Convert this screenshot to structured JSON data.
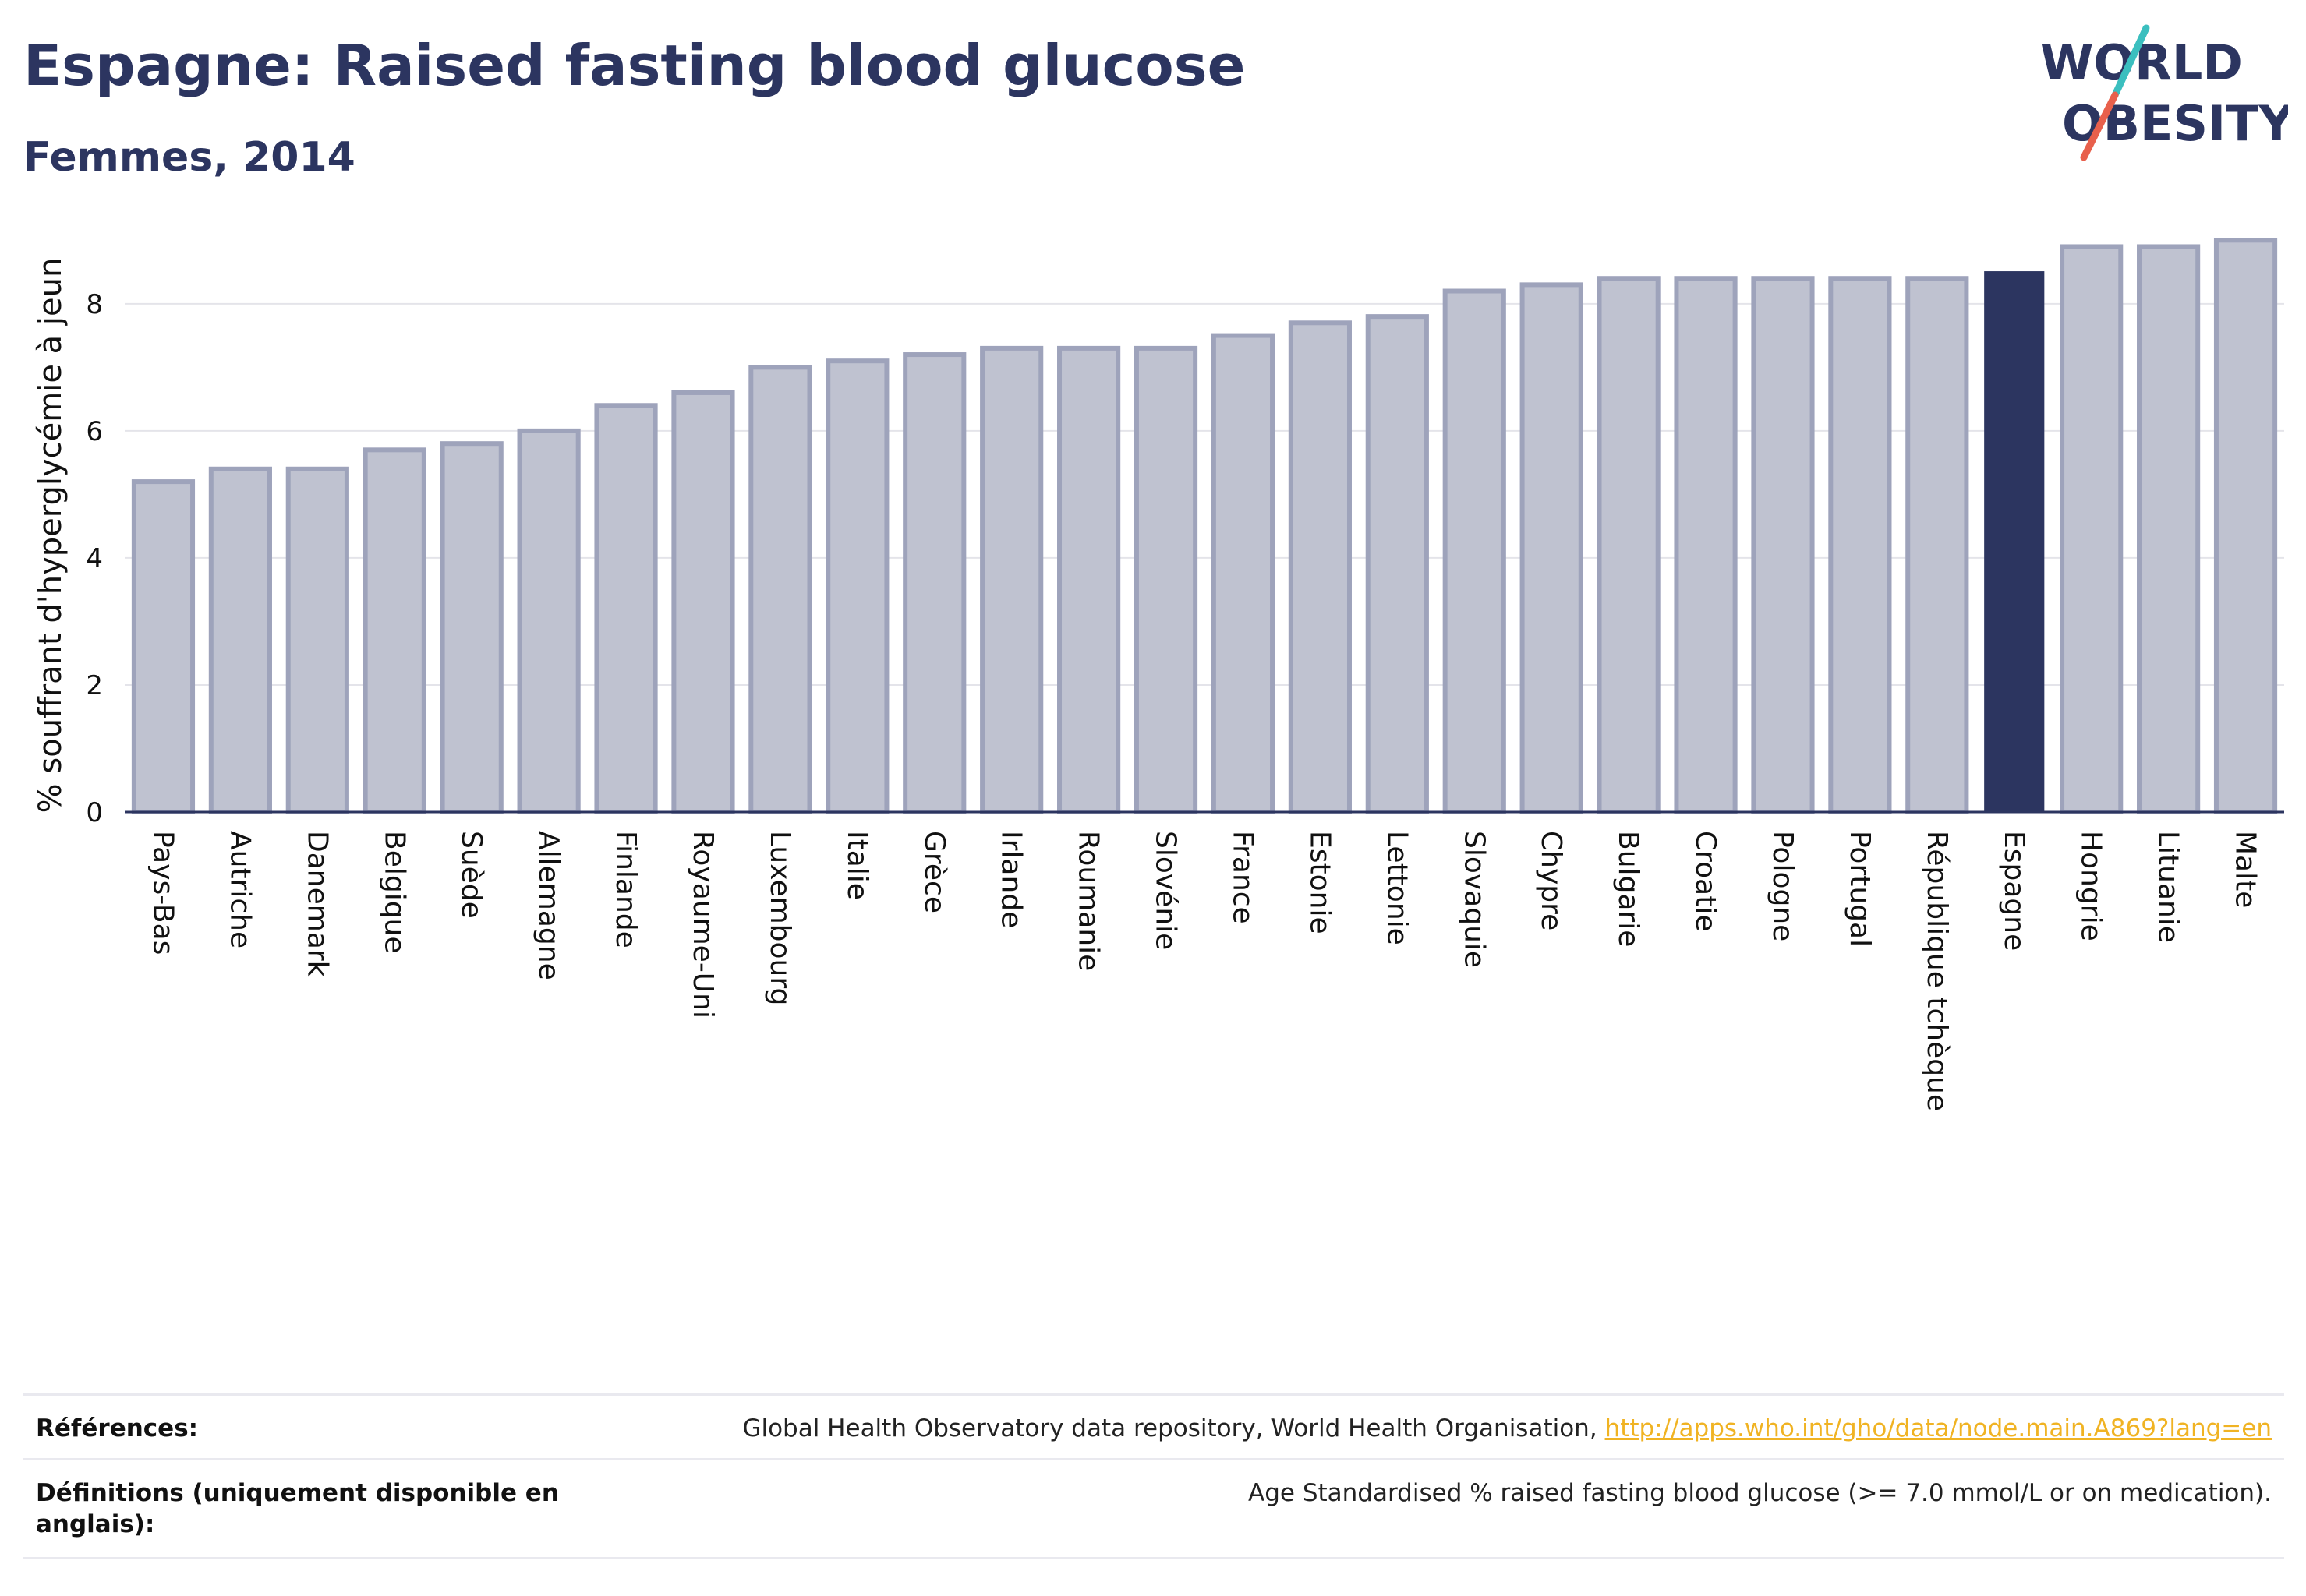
{
  "header": {
    "title": "Espagne: Raised fasting blood glucose",
    "subtitle": "Femmes, 2014"
  },
  "logo": {
    "line1": "WORLD",
    "line2": "OBESITY",
    "colors": {
      "text": "#2c3560",
      "stroke_top": "#3bbfbf",
      "stroke_bottom": "#e8604c"
    }
  },
  "colors": {
    "bar": "#bfc2d0",
    "bar_border": "#9ea3bb",
    "highlight": "#2c3560",
    "grid": "#e4e4ea",
    "axis": "#2c3560"
  },
  "chart_data": {
    "type": "bar",
    "title": "",
    "ylabel": "% souffrant d'hyperglycémie à jeun",
    "xlabel": "",
    "ylim": [
      0,
      9.2
    ],
    "yticks": [
      0,
      2,
      4,
      6,
      8
    ],
    "grid": true,
    "highlight": "Espagne",
    "categories": [
      "Pays-Bas",
      "Autriche",
      "Danemark",
      "Belgique",
      "Suède",
      "Allemagne",
      "Finlande",
      "Royaume-Uni",
      "Luxembourg",
      "Italie",
      "Grèce",
      "Irlande",
      "Roumanie",
      "Slovénie",
      "France",
      "Estonie",
      "Lettonie",
      "Slovaquie",
      "Chypre",
      "Bulgarie",
      "Croatie",
      "Pologne",
      "Portugal",
      "République tchèque",
      "Espagne",
      "Hongrie",
      "Lituanie",
      "Malte"
    ],
    "values": [
      5.2,
      5.4,
      5.4,
      5.7,
      5.8,
      6.0,
      6.4,
      6.6,
      7.0,
      7.1,
      7.2,
      7.3,
      7.3,
      7.3,
      7.5,
      7.7,
      7.8,
      8.2,
      8.3,
      8.4,
      8.4,
      8.4,
      8.4,
      8.4,
      8.5,
      8.9,
      8.9,
      9.0
    ]
  },
  "references": {
    "label": "Références:",
    "text": "Global Health Observatory data repository, World Health Organisation, ",
    "link": "http://apps.who.int/gho/data/node.main.A869?lang=en"
  },
  "definitions": {
    "label": "Définitions (uniquement disponible en anglais):",
    "text": "Age Standardised % raised fasting blood glucose (>= 7.0 mmol/L or on medication)."
  }
}
